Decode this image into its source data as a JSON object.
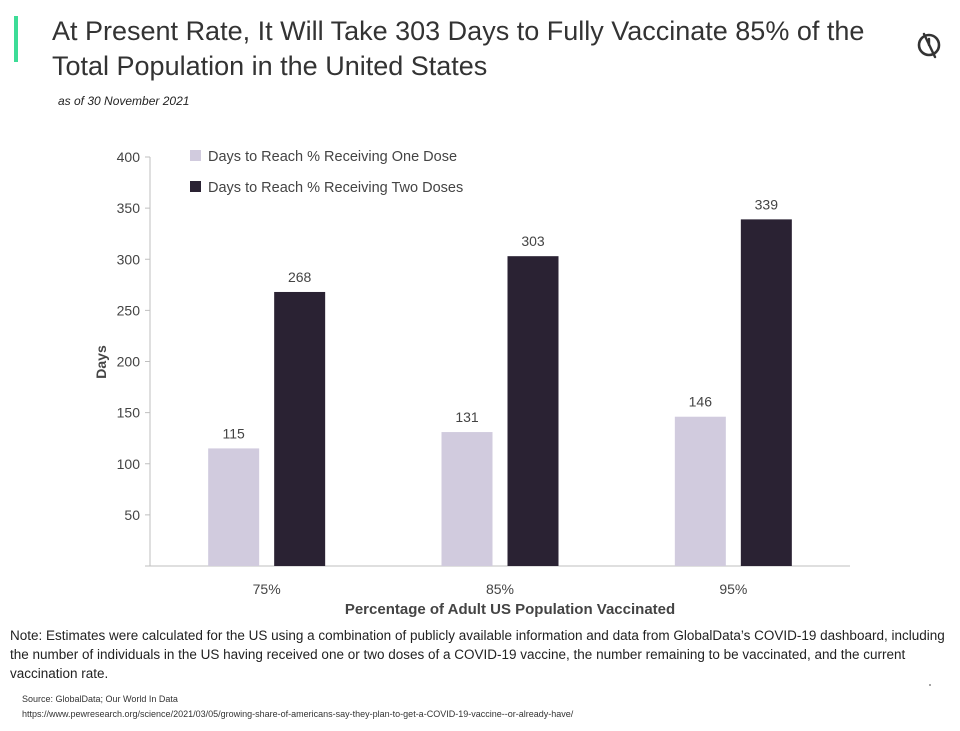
{
  "header": {
    "title": "At Present Rate, It Will Take 303 Days to Fully Vaccinate 85% of the Total Population in the United States",
    "subtitle": "as of 30 November 2021",
    "accent_color": "#3ddc97",
    "logo_icon": "no-clock-icon"
  },
  "chart_data": {
    "type": "bar",
    "categories": [
      "75%",
      "85%",
      "95%"
    ],
    "series": [
      {
        "name": "Days to Reach % Receiving One Dose",
        "values": [
          115,
          131,
          146
        ],
        "color": "#d1cbde"
      },
      {
        "name": "Days to Reach % Receiving Two Doses",
        "values": [
          268,
          303,
          339
        ],
        "color": "#2a2233"
      }
    ],
    "xlabel": "Percentage of Adult US Population Vaccinated",
    "ylabel": "Days",
    "ylim": [
      0,
      400
    ],
    "yticks": [
      50,
      100,
      150,
      200,
      250,
      300,
      350,
      400
    ],
    "grid": false,
    "legend": "top-left"
  },
  "footer": {
    "note": "Note: Estimates were calculated for the US using a combination of publicly available information and data from GlobalData’s COVID-19 dashboard, including the number of individuals in the US having received one or two doses of a COVID-19 vaccine, the number remaining to be vaccinated, and the current vaccination rate.",
    "source": "Source: GlobalData; Our World In Data",
    "url": "https://www.pewresearch.org/science/2021/03/05/growing-share-of-americans-say-they-plan-to-get-a-COVID-19-vaccine--or-already-have/"
  }
}
